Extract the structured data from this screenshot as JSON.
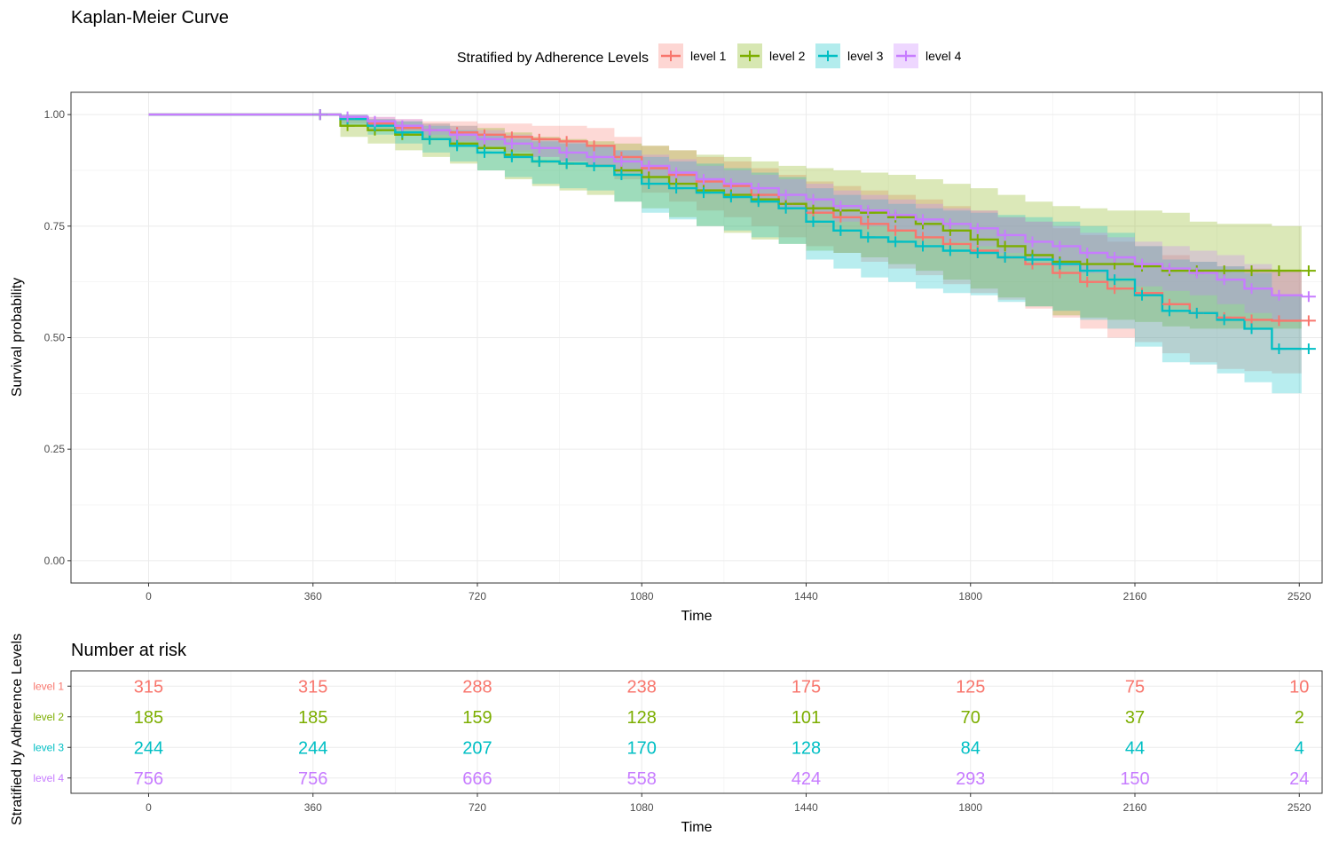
{
  "chart_data": [
    {
      "type": "line",
      "subtype": "kaplan-meier step curves with confidence bands",
      "title": "Kaplan-Meier Curve",
      "xlabel": "Time",
      "ylabel": "Survival probability",
      "xlim": [
        -170,
        2570
      ],
      "ylim": [
        -0.05,
        1.05
      ],
      "x_ticks": [
        0,
        360,
        720,
        1080,
        1440,
        1800,
        2160,
        2520
      ],
      "x_tick_labels": [
        "0",
        "360",
        "720",
        "1080",
        "1440",
        "1800",
        "2160",
        "2520"
      ],
      "y_ticks": [
        0,
        0.25,
        0.5,
        0.75,
        1.0
      ],
      "y_tick_labels": [
        "0.00",
        "0.25",
        "0.50",
        "0.75",
        "1.00"
      ],
      "grid": true,
      "legend": {
        "title": "Stratified by Adherence Levels",
        "position": "top",
        "entries": [
          "level 1",
          "level 2",
          "level 3",
          "level 4"
        ]
      },
      "series": [
        {
          "name": "level 1",
          "color": "#F8766D",
          "x": [
            0,
            360,
            420,
            480,
            540,
            600,
            660,
            720,
            780,
            840,
            900,
            960,
            1020,
            1080,
            1140,
            1200,
            1260,
            1320,
            1380,
            1440,
            1500,
            1560,
            1620,
            1680,
            1740,
            1800,
            1860,
            1920,
            1980,
            2040,
            2100,
            2160,
            2220,
            2280,
            2340,
            2400,
            2460,
            2525
          ],
          "y": [
            1.0,
            1.0,
            0.99,
            0.98,
            0.97,
            0.965,
            0.96,
            0.955,
            0.95,
            0.945,
            0.94,
            0.93,
            0.905,
            0.88,
            0.865,
            0.85,
            0.84,
            0.82,
            0.8,
            0.78,
            0.77,
            0.755,
            0.74,
            0.725,
            0.71,
            0.695,
            0.68,
            0.665,
            0.645,
            0.625,
            0.61,
            0.6,
            0.575,
            0.555,
            0.545,
            0.54,
            0.538,
            0.538
          ],
          "lower": [
            1.0,
            1.0,
            0.98,
            0.965,
            0.955,
            0.945,
            0.935,
            0.925,
            0.915,
            0.905,
            0.895,
            0.885,
            0.855,
            0.825,
            0.805,
            0.785,
            0.77,
            0.75,
            0.725,
            0.705,
            0.69,
            0.67,
            0.655,
            0.64,
            0.62,
            0.6,
            0.585,
            0.565,
            0.545,
            0.52,
            0.5,
            0.49,
            0.465,
            0.445,
            0.43,
            0.425,
            0.42,
            0.42
          ],
          "upper": [
            1.0,
            1.0,
            1.0,
            0.995,
            0.99,
            0.985,
            0.985,
            0.98,
            0.98,
            0.975,
            0.975,
            0.97,
            0.95,
            0.93,
            0.92,
            0.905,
            0.895,
            0.88,
            0.865,
            0.85,
            0.84,
            0.83,
            0.82,
            0.81,
            0.795,
            0.785,
            0.77,
            0.76,
            0.745,
            0.73,
            0.715,
            0.705,
            0.685,
            0.67,
            0.66,
            0.655,
            0.65,
            0.65
          ]
        },
        {
          "name": "level 2",
          "color": "#7CAE00",
          "x": [
            0,
            360,
            420,
            480,
            540,
            600,
            660,
            720,
            780,
            840,
            900,
            960,
            1020,
            1080,
            1140,
            1200,
            1260,
            1320,
            1380,
            1440,
            1500,
            1560,
            1620,
            1680,
            1740,
            1800,
            1860,
            1920,
            1980,
            2040,
            2100,
            2160,
            2220,
            2280,
            2340,
            2400,
            2460,
            2525
          ],
          "y": [
            1.0,
            1.0,
            0.975,
            0.965,
            0.955,
            0.945,
            0.935,
            0.925,
            0.91,
            0.895,
            0.89,
            0.885,
            0.875,
            0.86,
            0.845,
            0.83,
            0.82,
            0.81,
            0.8,
            0.79,
            0.785,
            0.78,
            0.77,
            0.755,
            0.74,
            0.72,
            0.705,
            0.685,
            0.67,
            0.665,
            0.665,
            0.66,
            0.65,
            0.65,
            0.65,
            0.65,
            0.65,
            0.65
          ],
          "lower": [
            1.0,
            1.0,
            0.95,
            0.935,
            0.92,
            0.905,
            0.89,
            0.875,
            0.855,
            0.84,
            0.83,
            0.82,
            0.805,
            0.79,
            0.77,
            0.75,
            0.735,
            0.72,
            0.71,
            0.695,
            0.69,
            0.68,
            0.665,
            0.65,
            0.63,
            0.61,
            0.59,
            0.57,
            0.55,
            0.545,
            0.54,
            0.535,
            0.525,
            0.52,
            0.52,
            0.52,
            0.52,
            0.52
          ],
          "upper": [
            1.0,
            1.0,
            0.995,
            0.99,
            0.985,
            0.98,
            0.975,
            0.97,
            0.96,
            0.95,
            0.945,
            0.94,
            0.935,
            0.93,
            0.92,
            0.91,
            0.905,
            0.895,
            0.885,
            0.88,
            0.875,
            0.87,
            0.865,
            0.855,
            0.845,
            0.835,
            0.82,
            0.805,
            0.795,
            0.79,
            0.785,
            0.785,
            0.78,
            0.76,
            0.755,
            0.755,
            0.75,
            0.75
          ]
        },
        {
          "name": "level 3",
          "color": "#00BFC4",
          "x": [
            0,
            360,
            420,
            480,
            540,
            600,
            660,
            720,
            780,
            840,
            900,
            960,
            1020,
            1080,
            1140,
            1200,
            1260,
            1320,
            1380,
            1440,
            1500,
            1560,
            1620,
            1680,
            1740,
            1800,
            1860,
            1920,
            1980,
            2040,
            2100,
            2160,
            2220,
            2280,
            2340,
            2400,
            2460,
            2525
          ],
          "y": [
            1.0,
            1.0,
            0.99,
            0.975,
            0.96,
            0.945,
            0.93,
            0.915,
            0.905,
            0.895,
            0.89,
            0.885,
            0.865,
            0.845,
            0.835,
            0.825,
            0.815,
            0.805,
            0.79,
            0.76,
            0.74,
            0.725,
            0.715,
            0.705,
            0.695,
            0.69,
            0.68,
            0.675,
            0.665,
            0.65,
            0.63,
            0.595,
            0.56,
            0.555,
            0.54,
            0.52,
            0.475,
            0.475
          ],
          "lower": [
            1.0,
            1.0,
            0.975,
            0.955,
            0.935,
            0.915,
            0.895,
            0.875,
            0.86,
            0.845,
            0.835,
            0.83,
            0.805,
            0.78,
            0.765,
            0.75,
            0.74,
            0.725,
            0.71,
            0.675,
            0.655,
            0.635,
            0.625,
            0.61,
            0.6,
            0.595,
            0.58,
            0.57,
            0.56,
            0.54,
            0.52,
            0.48,
            0.445,
            0.44,
            0.42,
            0.4,
            0.375,
            0.375
          ],
          "upper": [
            1.0,
            1.0,
            1.0,
            0.99,
            0.985,
            0.975,
            0.965,
            0.955,
            0.945,
            0.94,
            0.935,
            0.93,
            0.92,
            0.905,
            0.895,
            0.89,
            0.88,
            0.87,
            0.86,
            0.835,
            0.82,
            0.81,
            0.8,
            0.79,
            0.785,
            0.78,
            0.775,
            0.77,
            0.76,
            0.75,
            0.735,
            0.705,
            0.675,
            0.67,
            0.66,
            0.645,
            0.595,
            0.595
          ]
        },
        {
          "name": "level 4",
          "color": "#C77CFF",
          "x": [
            0,
            360,
            420,
            480,
            540,
            600,
            660,
            720,
            780,
            840,
            900,
            960,
            1020,
            1080,
            1140,
            1200,
            1260,
            1320,
            1380,
            1440,
            1500,
            1560,
            1620,
            1680,
            1740,
            1800,
            1860,
            1920,
            1980,
            2040,
            2100,
            2160,
            2220,
            2280,
            2340,
            2400,
            2460,
            2525
          ],
          "y": [
            1.0,
            1.0,
            0.995,
            0.985,
            0.975,
            0.965,
            0.955,
            0.945,
            0.935,
            0.925,
            0.915,
            0.905,
            0.895,
            0.885,
            0.87,
            0.855,
            0.845,
            0.835,
            0.82,
            0.81,
            0.795,
            0.785,
            0.775,
            0.765,
            0.755,
            0.745,
            0.73,
            0.715,
            0.705,
            0.69,
            0.68,
            0.665,
            0.655,
            0.645,
            0.63,
            0.61,
            0.595,
            0.592
          ],
          "lower": [
            1.0,
            1.0,
            0.99,
            0.975,
            0.965,
            0.955,
            0.94,
            0.93,
            0.92,
            0.905,
            0.895,
            0.885,
            0.87,
            0.86,
            0.845,
            0.83,
            0.815,
            0.805,
            0.79,
            0.78,
            0.76,
            0.75,
            0.74,
            0.725,
            0.715,
            0.705,
            0.69,
            0.675,
            0.66,
            0.645,
            0.635,
            0.615,
            0.605,
            0.595,
            0.575,
            0.555,
            0.54,
            0.535
          ],
          "upper": [
            1.0,
            1.0,
            1.0,
            0.995,
            0.99,
            0.98,
            0.975,
            0.965,
            0.955,
            0.945,
            0.94,
            0.93,
            0.92,
            0.91,
            0.9,
            0.885,
            0.875,
            0.865,
            0.855,
            0.845,
            0.83,
            0.82,
            0.81,
            0.8,
            0.79,
            0.785,
            0.77,
            0.76,
            0.75,
            0.735,
            0.725,
            0.715,
            0.705,
            0.695,
            0.685,
            0.665,
            0.65,
            0.645
          ]
        }
      ]
    },
    {
      "type": "table",
      "title": "Number at risk",
      "xlabel": "Time",
      "ylabel": "Stratified by Adherence Levels",
      "xlim": [
        -170,
        2570
      ],
      "x_ticks": [
        0,
        360,
        720,
        1080,
        1440,
        1800,
        2160,
        2520
      ],
      "x_tick_labels": [
        "0",
        "360",
        "720",
        "1080",
        "1440",
        "1800",
        "2160",
        "2520"
      ],
      "rows": [
        {
          "name": "level 1",
          "color": "#F8766D",
          "values": [
            "315",
            "315",
            "288",
            "238",
            "175",
            "125",
            "75",
            "10"
          ]
        },
        {
          "name": "level 2",
          "color": "#7CAE00",
          "values": [
            "185",
            "185",
            "159",
            "128",
            "101",
            "70",
            "37",
            "2"
          ]
        },
        {
          "name": "level 3",
          "color": "#00BFC4",
          "values": [
            "244",
            "244",
            "207",
            "170",
            "128",
            "84",
            "44",
            "4"
          ]
        },
        {
          "name": "level 4",
          "color": "#C77CFF",
          "values": [
            "756",
            "756",
            "666",
            "558",
            "424",
            "293",
            "150",
            "24"
          ]
        }
      ]
    }
  ]
}
